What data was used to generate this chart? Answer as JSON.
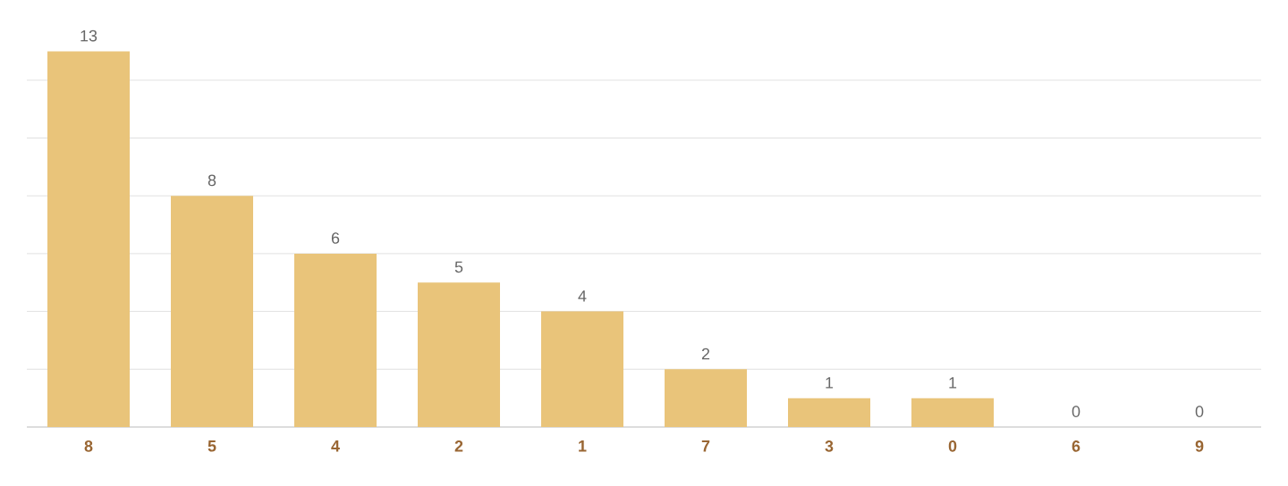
{
  "chart_data": {
    "type": "bar",
    "categories": [
      "8",
      "5",
      "4",
      "2",
      "1",
      "7",
      "3",
      "0",
      "6",
      "9"
    ],
    "values": [
      13,
      8,
      6,
      5,
      4,
      2,
      1,
      1,
      0,
      0
    ],
    "color": "#e9c47a",
    "grid": "y",
    "tick_labels": "x",
    "data_labels": true
  }
}
